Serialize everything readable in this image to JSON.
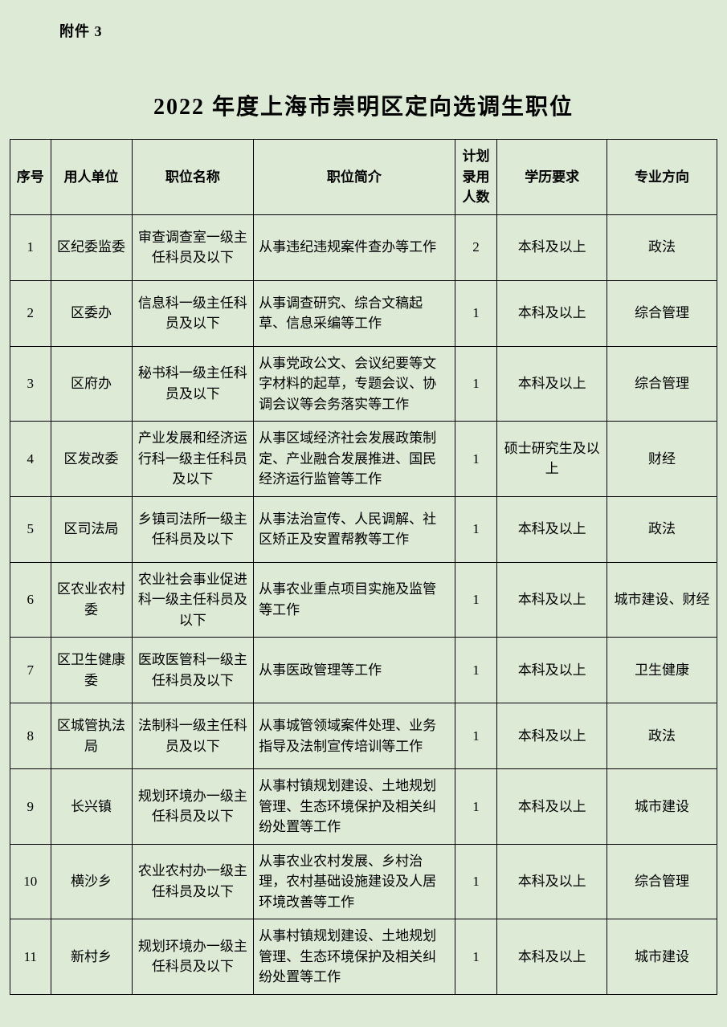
{
  "attachment_label": "附件 3",
  "title": "2022 年度上海市崇明区定向选调生职位",
  "columns": [
    "序号",
    "用人单位",
    "职位名称",
    "职位简介",
    "计划录用人数",
    "学历要求",
    "专业方向"
  ],
  "rows": [
    {
      "seq": "1",
      "unit": "区纪委监委",
      "position": "审查调查室一级主任科员及以下",
      "desc": "从事违纪违规案件查办等工作",
      "count": "2",
      "edu": "本科及以上",
      "major": "政法"
    },
    {
      "seq": "2",
      "unit": "区委办",
      "position": "信息科一级主任科员及以下",
      "desc": "从事调查研究、综合文稿起草、信息采编等工作",
      "count": "1",
      "edu": "本科及以上",
      "major": "综合管理"
    },
    {
      "seq": "3",
      "unit": "区府办",
      "position": "秘书科一级主任科员及以下",
      "desc": "从事党政公文、会议纪要等文字材料的起草，专题会议、协调会议等会务落实等工作",
      "count": "1",
      "edu": "本科及以上",
      "major": "综合管理"
    },
    {
      "seq": "4",
      "unit": "区发改委",
      "position": "产业发展和经济运行科一级主任科员及以下",
      "desc": "从事区域经济社会发展政策制定、产业融合发展推进、国民经济运行监管等工作",
      "count": "1",
      "edu": "硕士研究生及以上",
      "major": "财经"
    },
    {
      "seq": "5",
      "unit": "区司法局",
      "position": "乡镇司法所一级主任科员及以下",
      "desc": "从事法治宣传、人民调解、社区矫正及安置帮教等工作",
      "count": "1",
      "edu": "本科及以上",
      "major": "政法"
    },
    {
      "seq": "6",
      "unit": "区农业农村委",
      "position": "农业社会事业促进科一级主任科员及以下",
      "desc": "从事农业重点项目实施及监管等工作",
      "count": "1",
      "edu": "本科及以上",
      "major": "城市建设、财经"
    },
    {
      "seq": "7",
      "unit": "区卫生健康委",
      "position": "医政医管科一级主任科员及以下",
      "desc": "从事医政管理等工作",
      "count": "1",
      "edu": "本科及以上",
      "major": "卫生健康"
    },
    {
      "seq": "8",
      "unit": "区城管执法局",
      "position": "法制科一级主任科员及以下",
      "desc": "从事城管领域案件处理、业务指导及法制宣传培训等工作",
      "count": "1",
      "edu": "本科及以上",
      "major": "政法"
    },
    {
      "seq": "9",
      "unit": "长兴镇",
      "position": "规划环境办一级主任科员及以下",
      "desc": "从事村镇规划建设、土地规划管理、生态环境保护及相关纠纷处置等工作",
      "count": "1",
      "edu": "本科及以上",
      "major": "城市建设"
    },
    {
      "seq": "10",
      "unit": "横沙乡",
      "position": "农业农村办一级主任科员及以下",
      "desc": "从事农业农村发展、乡村治理，农村基础设施建设及人居环境改善等工作",
      "count": "1",
      "edu": "本科及以上",
      "major": "综合管理"
    },
    {
      "seq": "11",
      "unit": "新村乡",
      "position": "规划环境办一级主任科员及以下",
      "desc": "从事村镇规划建设、土地规划管理、生态环境保护及相关纠纷处置等工作",
      "count": "1",
      "edu": "本科及以上",
      "major": "城市建设"
    }
  ]
}
